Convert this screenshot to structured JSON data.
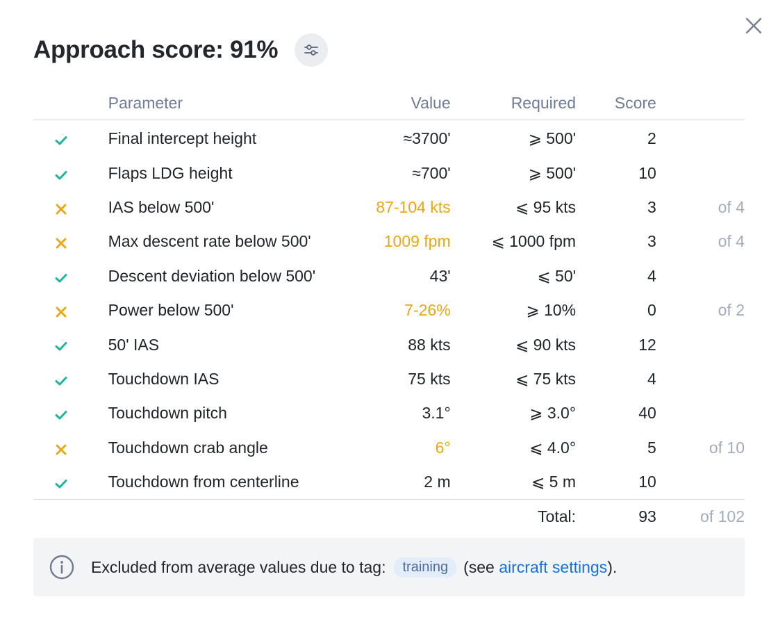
{
  "dialog": {
    "title": "Approach score: 91%",
    "icons": {
      "close": "close-icon",
      "settings": "sliders-icon",
      "pass": "check-icon",
      "fail": "cross-icon",
      "info": "info-icon"
    },
    "colors": {
      "pass": "#1fb59a",
      "fail": "#e6a817",
      "link": "#1a6fd8"
    }
  },
  "table": {
    "headers": {
      "parameter": "Parameter",
      "value": "Value",
      "required": "Required",
      "score": "Score"
    },
    "rows": [
      {
        "status": "pass",
        "parameter": "Final intercept height",
        "value": "≈3700'",
        "required": "⩾ 500'",
        "score": "2",
        "of": ""
      },
      {
        "status": "pass",
        "parameter": "Flaps LDG height",
        "value": "≈700'",
        "required": "⩾ 500'",
        "score": "10",
        "of": ""
      },
      {
        "status": "fail",
        "parameter": "IAS below 500'",
        "value": "87-104 kts",
        "required": "⩽ 95 kts",
        "score": "3",
        "of": "of 4"
      },
      {
        "status": "fail",
        "parameter": "Max descent rate below 500'",
        "value": "1009 fpm",
        "required": "⩽ 1000 fpm",
        "score": "3",
        "of": "of 4"
      },
      {
        "status": "pass",
        "parameter": "Descent deviation below 500'",
        "value": "43'",
        "required": "⩽ 50'",
        "score": "4",
        "of": ""
      },
      {
        "status": "fail",
        "parameter": "Power below 500'",
        "value": "7-26%",
        "required": "⩾ 10%",
        "score": "0",
        "of": "of 2"
      },
      {
        "status": "pass",
        "parameter": "50' IAS",
        "value": "88 kts",
        "required": "⩽ 90 kts",
        "score": "12",
        "of": ""
      },
      {
        "status": "pass",
        "parameter": "Touchdown IAS",
        "value": "75 kts",
        "required": "⩽ 75 kts",
        "score": "4",
        "of": ""
      },
      {
        "status": "pass",
        "parameter": "Touchdown pitch",
        "value": "3.1°",
        "required": "⩾ 3.0°",
        "score": "40",
        "of": ""
      },
      {
        "status": "fail",
        "parameter": "Touchdown crab angle",
        "value": "6°",
        "required": "⩽ 4.0°",
        "score": "5",
        "of": "of 10"
      },
      {
        "status": "pass",
        "parameter": "Touchdown from centerline",
        "value": "2 m",
        "required": "⩽ 5 m",
        "score": "10",
        "of": ""
      }
    ],
    "total": {
      "label": "Total:",
      "score": "93",
      "of": "of 102"
    }
  },
  "notice": {
    "text_before": "Excluded from average values due to tag:",
    "tag": "training",
    "text_mid": "(see",
    "link": "aircraft settings",
    "text_after": ")."
  }
}
